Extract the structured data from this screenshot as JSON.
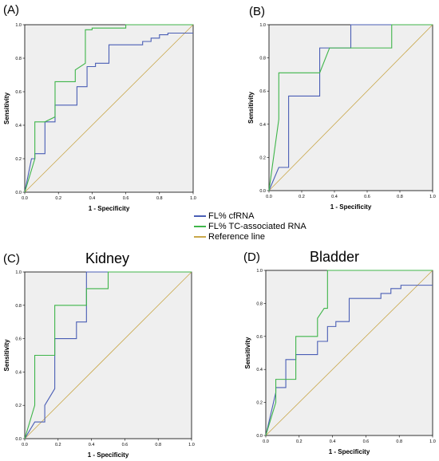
{
  "chart_data": [
    {
      "type": "line",
      "label": "(A)",
      "title": "",
      "xlabel": "1 - Specificity",
      "ylabel": "Sensitivity",
      "xlim": [
        0,
        1
      ],
      "ylim": [
        0,
        1
      ],
      "xticks": [
        "0.0",
        "0.2",
        "0.4",
        "0.6",
        "0.8",
        "1.0"
      ],
      "yticks": [
        "0.0",
        "0.2",
        "0.4",
        "0.6",
        "0.8",
        "1.0"
      ],
      "grid": false,
      "series": [
        {
          "name": "FL% cfRNA",
          "color": "#4a5eb5",
          "x": [
            0,
            0.04,
            0.06,
            0.06,
            0.12,
            0.12,
            0.18,
            0.18,
            0.25,
            0.31,
            0.31,
            0.37,
            0.37,
            0.42,
            0.42,
            0.5,
            0.5,
            0.62,
            0.7,
            0.7,
            0.75,
            0.75,
            0.8,
            0.8,
            0.85,
            0.85,
            1.0
          ],
          "y": [
            0,
            0.2,
            0.2,
            0.23,
            0.23,
            0.42,
            0.42,
            0.52,
            0.52,
            0.52,
            0.63,
            0.63,
            0.75,
            0.75,
            0.77,
            0.77,
            0.88,
            0.88,
            0.88,
            0.9,
            0.9,
            0.92,
            0.92,
            0.94,
            0.94,
            0.95,
            0.95
          ]
        },
        {
          "name": "FL% TC-associated RNA",
          "color": "#3fb54a",
          "x": [
            0,
            0.06,
            0.06,
            0.12,
            0.18,
            0.18,
            0.3,
            0.3,
            0.36,
            0.36,
            0.4,
            0.4,
            0.6,
            0.6,
            1.0
          ],
          "y": [
            0,
            0.2,
            0.42,
            0.42,
            0.45,
            0.66,
            0.66,
            0.73,
            0.77,
            0.97,
            0.97,
            0.98,
            0.98,
            1.0,
            1.0
          ]
        },
        {
          "name": "Reference line",
          "color": "#c9a74a",
          "x": [
            0,
            1
          ],
          "y": [
            0,
            1
          ]
        }
      ]
    },
    {
      "type": "line",
      "label": "(B)",
      "title": "",
      "xlabel": "1 - Specificity",
      "ylabel": "Sensitivity",
      "xlim": [
        0,
        1
      ],
      "ylim": [
        0,
        1
      ],
      "xticks": [
        "0.0",
        "0.2",
        "0.4",
        "0.6",
        "0.8",
        "1.0"
      ],
      "yticks": [
        "0.0",
        "0.2",
        "0.4",
        "0.6",
        "0.8",
        "1.0"
      ],
      "grid": false,
      "series": [
        {
          "name": "FL% cfRNA",
          "color": "#4a5eb5",
          "x": [
            0,
            0.06,
            0.06,
            0.12,
            0.12,
            0.31,
            0.31,
            0.5,
            0.5,
            1.0
          ],
          "y": [
            0,
            0.14,
            0.14,
            0.14,
            0.57,
            0.57,
            0.86,
            0.86,
            1.0,
            1.0
          ]
        },
        {
          "name": "FL% TC-associated RNA",
          "color": "#3fb54a",
          "x": [
            0,
            0.06,
            0.06,
            0.31,
            0.31,
            0.37,
            0.37,
            0.75,
            0.75,
            1.0
          ],
          "y": [
            0,
            0.43,
            0.71,
            0.71,
            0.71,
            0.86,
            0.86,
            0.86,
            1.0,
            1.0
          ]
        },
        {
          "name": "Reference line",
          "color": "#c9a74a",
          "x": [
            0,
            1
          ],
          "y": [
            0,
            1
          ]
        }
      ]
    },
    {
      "type": "line",
      "label": "(C)",
      "title": "Kidney",
      "xlabel": "1 - Specificity",
      "ylabel": "Sensitivity",
      "xlim": [
        0,
        1
      ],
      "ylim": [
        0,
        1
      ],
      "xticks": [
        "0.0",
        "0.2",
        "0.4",
        "0.6",
        "0.8",
        "1.0"
      ],
      "yticks": [
        "0.0",
        "0.2",
        "0.4",
        "0.6",
        "0.8",
        "1.0"
      ],
      "grid": false,
      "series": [
        {
          "name": "FL% cfRNA",
          "color": "#4a5eb5",
          "x": [
            0,
            0.06,
            0.06,
            0.12,
            0.12,
            0.18,
            0.18,
            0.31,
            0.31,
            0.37,
            0.37,
            1.0
          ],
          "y": [
            0,
            0.1,
            0.1,
            0.1,
            0.2,
            0.3,
            0.6,
            0.6,
            0.7,
            0.7,
            1.0,
            1.0
          ]
        },
        {
          "name": "FL% TC-associated RNA",
          "color": "#3fb54a",
          "x": [
            0,
            0.06,
            0.06,
            0.18,
            0.18,
            0.37,
            0.37,
            0.5,
            0.5,
            1.0
          ],
          "y": [
            0,
            0.2,
            0.5,
            0.5,
            0.8,
            0.8,
            0.9,
            0.9,
            1.0,
            1.0
          ]
        },
        {
          "name": "Reference line",
          "color": "#c9a74a",
          "x": [
            0,
            1
          ],
          "y": [
            0,
            1
          ]
        }
      ]
    },
    {
      "type": "line",
      "label": "(D)",
      "title": "Bladder",
      "xlabel": "1 - Specificity",
      "ylabel": "Sensitivity",
      "xlim": [
        0,
        1
      ],
      "ylim": [
        0,
        1
      ],
      "xticks": [
        "0.0",
        "0.2",
        "0.4",
        "0.6",
        "0.8",
        "1.0"
      ],
      "yticks": [
        "0.0",
        "0.2",
        "0.4",
        "0.6",
        "0.8",
        "1.0"
      ],
      "grid": false,
      "series": [
        {
          "name": "FL% cfRNA",
          "color": "#4a5eb5",
          "x": [
            0,
            0.06,
            0.06,
            0.12,
            0.12,
            0.18,
            0.18,
            0.31,
            0.31,
            0.37,
            0.37,
            0.42,
            0.42,
            0.5,
            0.5,
            0.69,
            0.69,
            0.75,
            0.75,
            0.81,
            0.81,
            1.0
          ],
          "y": [
            0,
            0.26,
            0.29,
            0.29,
            0.46,
            0.46,
            0.49,
            0.49,
            0.57,
            0.57,
            0.66,
            0.66,
            0.69,
            0.69,
            0.83,
            0.83,
            0.86,
            0.86,
            0.89,
            0.89,
            0.91,
            0.91
          ]
        },
        {
          "name": "FL% TC-associated RNA",
          "color": "#3fb54a",
          "x": [
            0,
            0.06,
            0.06,
            0.12,
            0.18,
            0.18,
            0.31,
            0.31,
            0.35,
            0.37,
            0.37,
            1.0
          ],
          "y": [
            0,
            0.2,
            0.34,
            0.34,
            0.34,
            0.6,
            0.6,
            0.71,
            0.77,
            0.77,
            1.0,
            1.0
          ]
        },
        {
          "name": "Reference line",
          "color": "#c9a74a",
          "x": [
            0,
            1
          ],
          "y": [
            0,
            1
          ]
        }
      ]
    }
  ],
  "legend": {
    "items": [
      {
        "label": "FL% cfRNA",
        "color": "#4a5eb5"
      },
      {
        "label": "FL% TC-associated RNA",
        "color": "#3fb54a"
      },
      {
        "label": "Reference line",
        "color": "#c9a74a"
      }
    ]
  }
}
